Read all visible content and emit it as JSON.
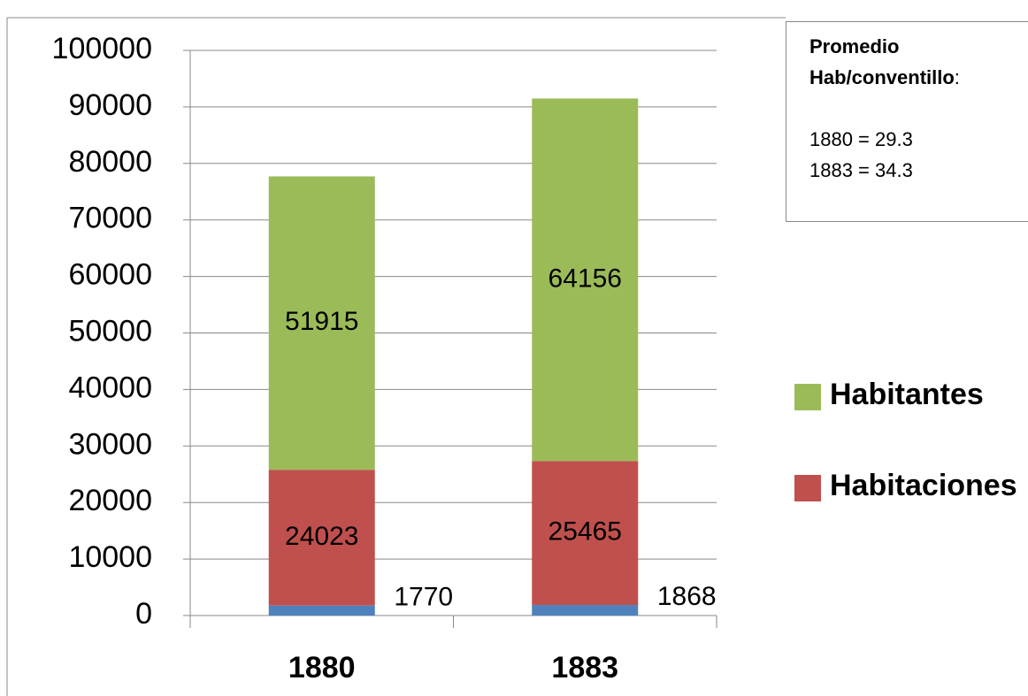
{
  "chart_data": {
    "type": "stacked_bar",
    "categories": [
      "1880",
      "1883"
    ],
    "series": [
      {
        "color": "#4f81bd",
        "values": [
          1770,
          1868
        ]
      },
      {
        "name": "Habitaciones",
        "color": "#c0504d",
        "values": [
          24023,
          25465
        ]
      },
      {
        "name": "Habitantes",
        "color": "#9bbb59",
        "values": [
          51915,
          64156
        ]
      }
    ],
    "ylim": [
      0,
      100000
    ],
    "yticks": [
      0,
      10000,
      20000,
      30000,
      40000,
      50000,
      60000,
      70000,
      80000,
      90000,
      100000
    ],
    "grid": true,
    "legend": "right",
    "annotation": {
      "title_1": "Promedio",
      "title_2": "Hab/conventillo",
      "title_end": ":",
      "lines": [
        "1880 = 29.3",
        "1883 = 34.3"
      ]
    }
  }
}
